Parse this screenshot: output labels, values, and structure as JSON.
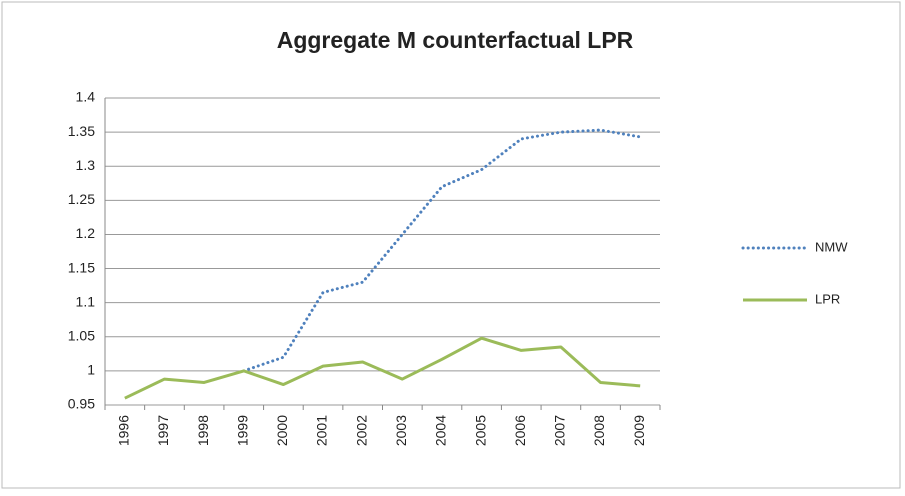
{
  "chart_data": {
    "type": "line",
    "title": "Aggregate M counterfactual LPR",
    "categories": [
      "1996",
      "1997",
      "1998",
      "1999",
      "2000",
      "2001",
      "2002",
      "2003",
      "2004",
      "2005",
      "2006",
      "2007",
      "2008",
      "2009"
    ],
    "series": [
      {
        "name": "NMW",
        "color": "#4f81bd",
        "style": "dotted",
        "values": [
          null,
          null,
          null,
          1.0,
          1.02,
          1.115,
          1.13,
          1.2,
          1.27,
          1.295,
          1.34,
          1.35,
          1.353,
          1.343
        ]
      },
      {
        "name": "LPR",
        "color": "#9bbb59",
        "style": "solid",
        "values": [
          0.96,
          0.988,
          0.983,
          1.0,
          0.98,
          1.007,
          1.013,
          0.988,
          1.017,
          1.048,
          1.03,
          1.035,
          0.983,
          0.978
        ]
      }
    ],
    "ylim": [
      0.95,
      1.4
    ],
    "yticks": [
      0.95,
      1,
      1.05,
      1.1,
      1.15,
      1.2,
      1.25,
      1.3,
      1.35,
      1.4
    ],
    "grid": true,
    "legend": "right"
  }
}
